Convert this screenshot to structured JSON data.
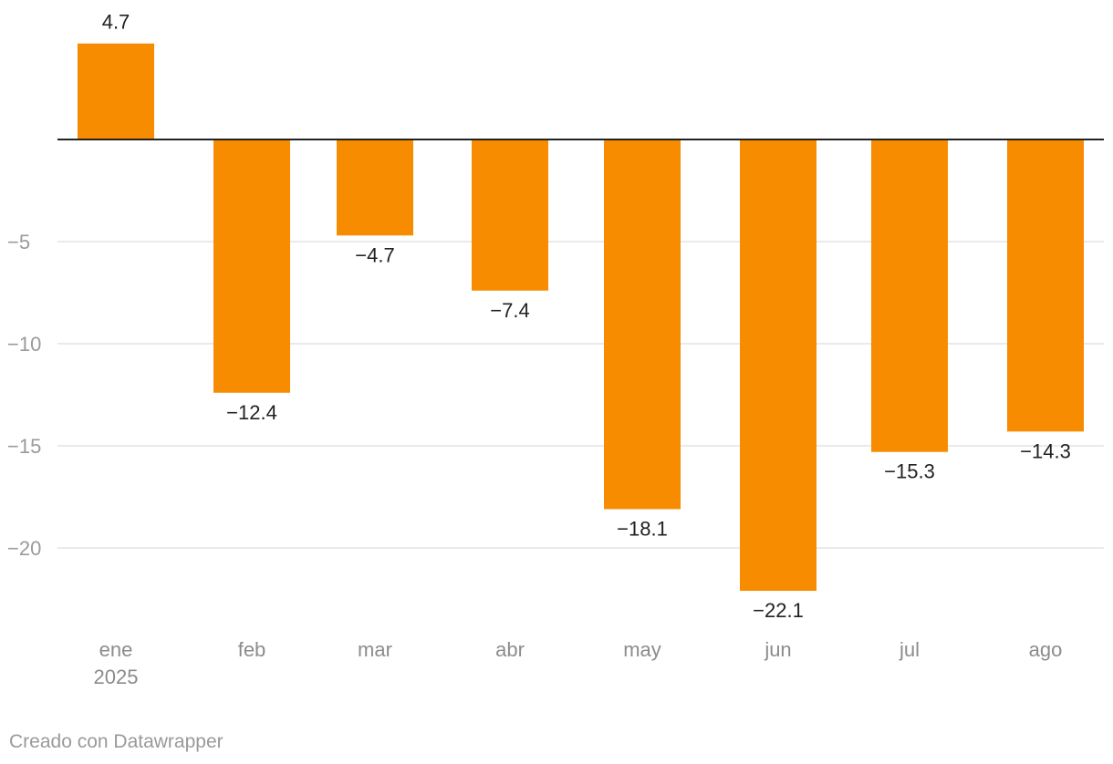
{
  "chart_data": {
    "type": "bar",
    "categories": [
      "ene",
      "feb",
      "mar",
      "abr",
      "may",
      "jun",
      "jul",
      "ago"
    ],
    "category_sublabels": [
      "2025",
      "",
      "",
      "",
      "",
      "",
      "",
      ""
    ],
    "values": [
      4.7,
      -12.4,
      -4.7,
      -7.4,
      -18.1,
      -22.1,
      -15.3,
      -14.3
    ],
    "value_labels": [
      "4.7",
      "−12.4",
      "−4.7",
      "−7.4",
      "−18.1",
      "−22.1",
      "−15.3",
      "−14.3"
    ],
    "title": "",
    "xlabel": "",
    "ylabel": "",
    "ylim": [
      -24,
      5.5
    ],
    "yticks": [
      -5,
      -10,
      -15,
      -20
    ],
    "ytick_labels": [
      "−5",
      "−10",
      "−15",
      "−20"
    ],
    "grid": true,
    "legend": "none",
    "bar_color": "#f78c00"
  },
  "footer": {
    "credit": "Creado con Datawrapper"
  }
}
